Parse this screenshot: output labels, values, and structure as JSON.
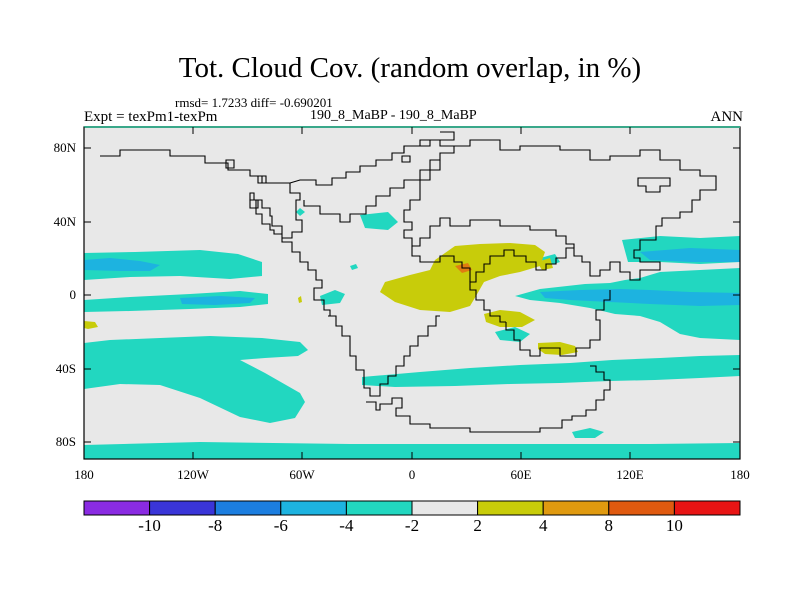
{
  "title": "Tot. Cloud Cov. (random overlap, in %)",
  "stats": "rmsd= 1.7233 diff= -0.690201",
  "expt": "Expt = texPm1-texPm",
  "runs": "190_8_MaBP - 190_8_MaBP",
  "season": "ANN",
  "x_ticks": [
    "180",
    "120W",
    "60W",
    "0",
    "60E",
    "120E",
    "180"
  ],
  "y_ticks": [
    "80N",
    "40N",
    "0",
    "40S",
    "80S"
  ],
  "colorbar": {
    "labels": [
      "-10",
      "-8",
      "-6",
      "-4",
      "-2",
      "2",
      "4",
      "8",
      "10"
    ],
    "colors": [
      "#8a2be2",
      "#3a35d8",
      "#1c7ee0",
      "#1db3e0",
      "#22d7c0",
      "#e8e8e8",
      "#c8cc0a",
      "#e09a10",
      "#e05a10",
      "#e81414"
    ]
  },
  "colors": {
    "background": "#e8e8e8",
    "teal": "#22d7c0",
    "blue": "#1db3e0",
    "olive": "#c8cc0a",
    "orange": "#e05a10",
    "coast": "#000000",
    "frame": "#3aa88a"
  }
}
